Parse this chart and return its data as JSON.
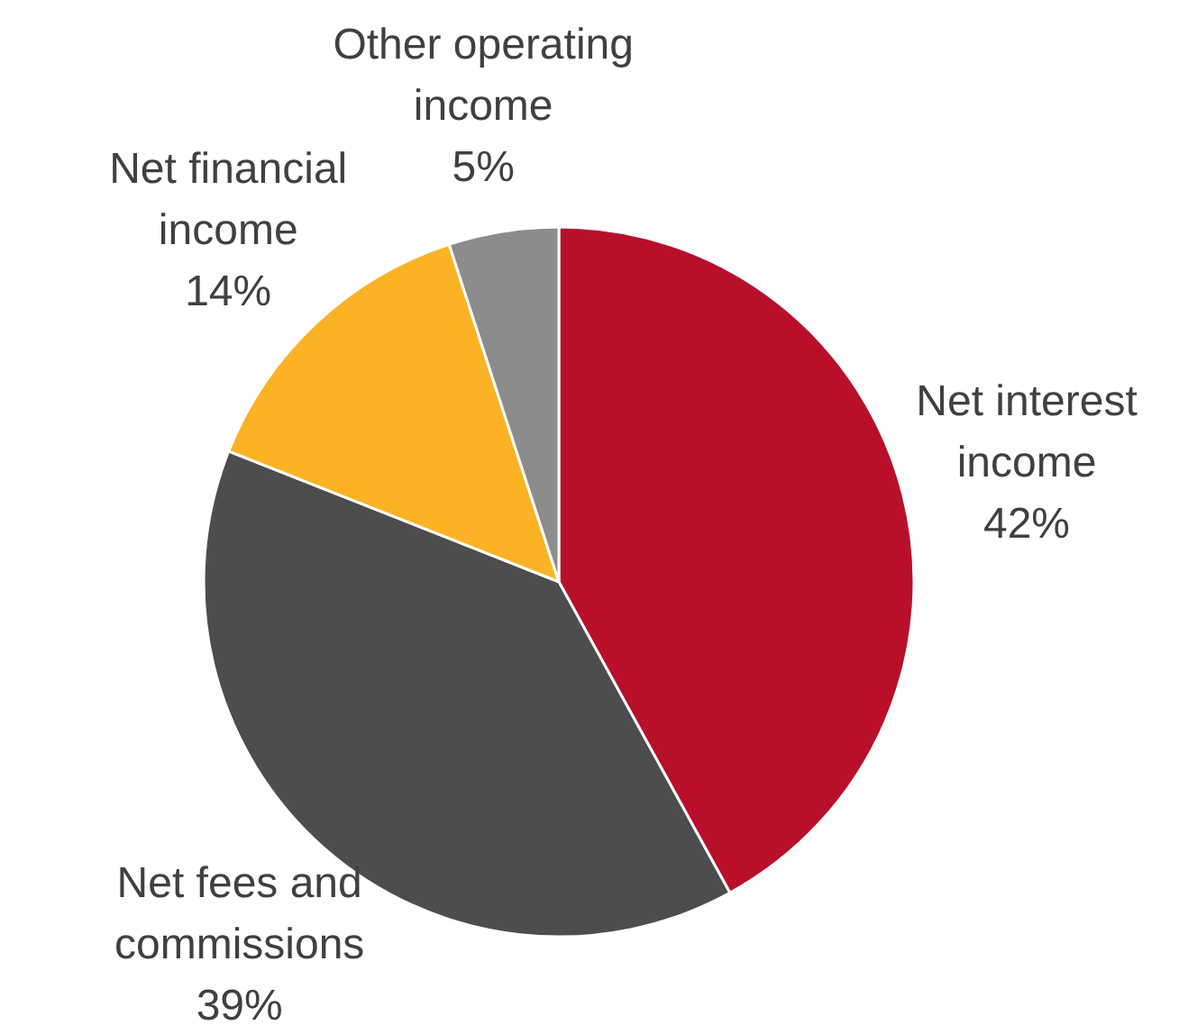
{
  "chart_data": {
    "type": "pie",
    "categories": [
      "Net interest income",
      "Net fees and commissions",
      "Net financial income",
      "Other operating income"
    ],
    "values": [
      42,
      39,
      14,
      5
    ],
    "colors": [
      "#b8102a",
      "#4d4d4d",
      "#fbb225",
      "#8c8c8c"
    ],
    "value_labels": [
      "42%",
      "39%",
      "14%",
      "5%"
    ]
  }
}
